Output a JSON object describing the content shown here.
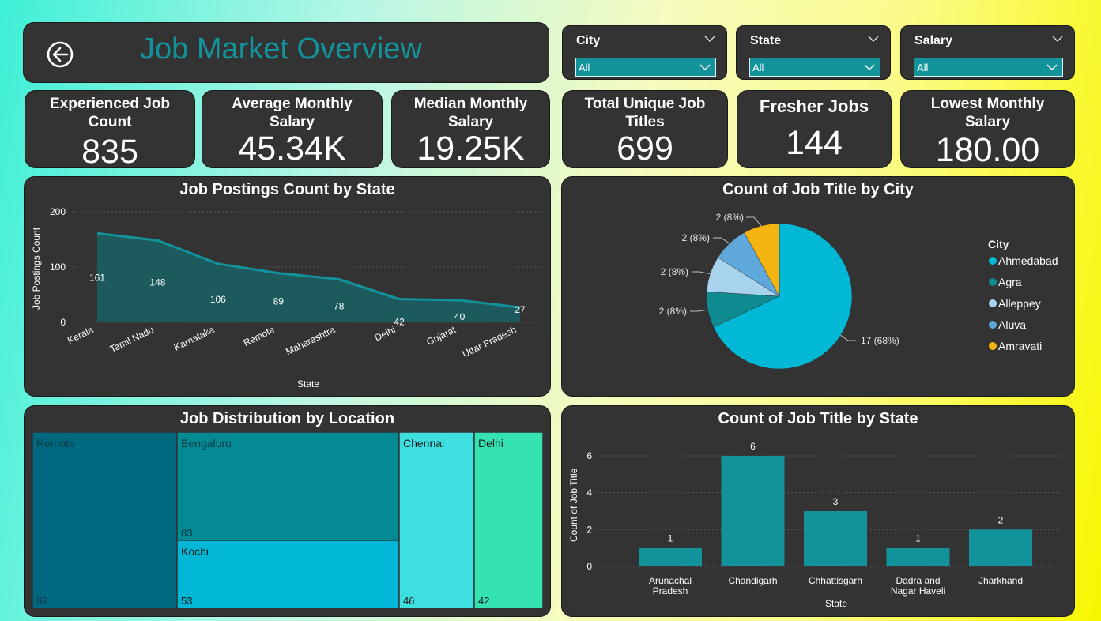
{
  "header": {
    "title": "Job Market Overview",
    "back_icon": "back-arrow-icon"
  },
  "slicers": [
    {
      "label": "City",
      "value": "All"
    },
    {
      "label": "State",
      "value": "All"
    },
    {
      "label": "Salary",
      "value": "All"
    }
  ],
  "kpis": [
    {
      "label": "Experienced Job Count",
      "value": "835"
    },
    {
      "label": "Average Monthly Salary",
      "value": "45.34K"
    },
    {
      "label": "Median Monthly Salary",
      "value": "19.25K"
    },
    {
      "label": "Total Unique Job Titles",
      "value": "699"
    },
    {
      "label": "Fresher Jobs",
      "value": "144"
    },
    {
      "label": "Lowest Monthly Salary",
      "value": "180.00"
    }
  ],
  "colors": {
    "panel": "#333333",
    "accent": "#12939c",
    "area": "#1d5a5e",
    "pie": [
      "#01b8d6",
      "#0f8c92",
      "#a8d3ed",
      "#5fa8db",
      "#f5b40f"
    ]
  },
  "chart_data": [
    {
      "type": "area",
      "title": "Job Postings Count by State",
      "xlabel": "State",
      "ylabel": "Job Postings Count",
      "categories": [
        "Kerala",
        "Tamil Nadu",
        "Karnataka",
        "Remote",
        "Maharashtra",
        "Delhi",
        "Gujarat",
        "Uttar Pradesh"
      ],
      "values": [
        161,
        148,
        106,
        89,
        78,
        42,
        40,
        27
      ],
      "ylim": [
        0,
        200
      ],
      "yticks": [
        "0",
        "100",
        "200"
      ],
      "grid": true
    },
    {
      "type": "pie",
      "title": "Count of Job Title by City",
      "legend_title": "City",
      "legend_position": "right",
      "slices": [
        {
          "name": "Ahmedabad",
          "value": 17,
          "label": "17 (68%)"
        },
        {
          "name": "Agra",
          "value": 2,
          "label": "2 (8%)"
        },
        {
          "name": "Alleppey",
          "value": 2,
          "label": "2 (8%)"
        },
        {
          "name": "Aluva",
          "value": 2,
          "label": "2 (8%)"
        },
        {
          "name": "Amravati",
          "value": 2,
          "label": "2 (8%)"
        }
      ]
    },
    {
      "type": "treemap",
      "title": "Job Distribution by Location",
      "items": [
        {
          "name": "Remote",
          "value": 89
        },
        {
          "name": "Bengaluru",
          "value": 83
        },
        {
          "name": "Kochi",
          "value": 53
        },
        {
          "name": "Chennai",
          "value": 46
        },
        {
          "name": "Delhi",
          "value": 42
        }
      ]
    },
    {
      "type": "bar",
      "title": "Count of Job Title by State",
      "xlabel": "State",
      "ylabel": "Count of Job Title",
      "categories": [
        [
          "Arunachal",
          "Pradesh"
        ],
        [
          "Chandigarh"
        ],
        [
          "Chhattisgarh"
        ],
        [
          "Dadra and",
          "Nagar Haveli"
        ],
        [
          "Jharkhand"
        ]
      ],
      "values": [
        1,
        6,
        3,
        1,
        2
      ],
      "ylim": [
        0,
        6
      ],
      "yticks": [
        "0",
        "2",
        "4",
        "6"
      ],
      "grid": true
    }
  ]
}
